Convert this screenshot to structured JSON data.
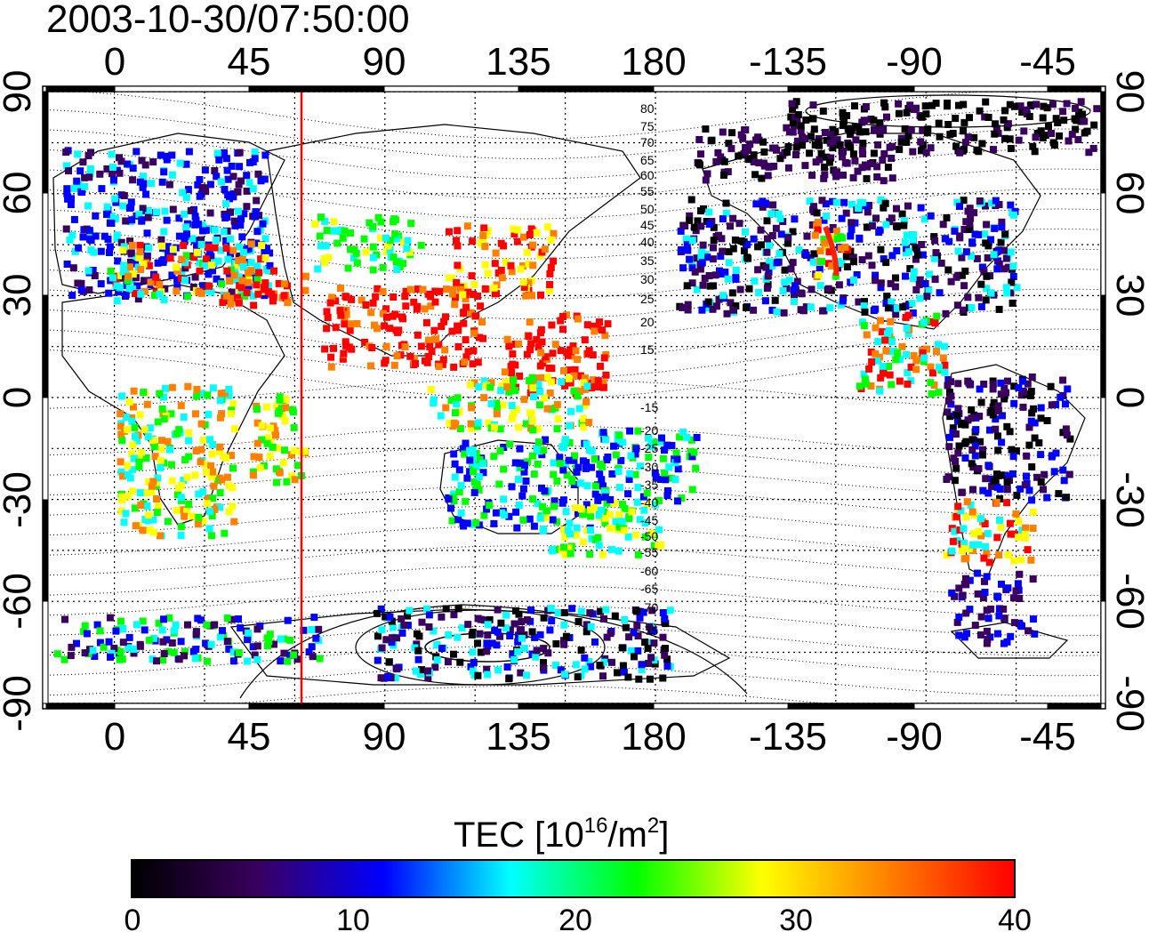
{
  "timestamp": "2003-10-30/07:50:00",
  "map": {
    "top_axis_ticks": [
      "0",
      "45",
      "90",
      "135",
      "180",
      "-135",
      "-90",
      "-45"
    ],
    "bottom_axis_ticks": [
      "0",
      "45",
      "90",
      "135",
      "180",
      "-135",
      "-90",
      "-45"
    ],
    "left_axis_ticks": [
      "90",
      "60",
      "30",
      "0",
      "-30",
      "-60",
      "-90"
    ],
    "right_axis_ticks": [
      "90",
      "60",
      "30",
      "0",
      "-30",
      "-60",
      "-90"
    ],
    "contour_labels": [
      "80",
      "75",
      "70",
      "65",
      "60",
      "55",
      "50",
      "45",
      "40",
      "35",
      "30",
      "25",
      "20",
      "15",
      "-15",
      "-20",
      "-25",
      "-30",
      "-35",
      "-40",
      "-45",
      "-50",
      "-55",
      "-60",
      "-65",
      "-70",
      "-75"
    ],
    "marker_line_color": "#ff0000"
  },
  "colorbar": {
    "title_main": "TEC  [10",
    "title_sup1": "16",
    "title_mid": "/m",
    "title_sup2": "2",
    "title_end": "]",
    "tick_labels": [
      "0",
      "10",
      "20",
      "30",
      "40"
    ],
    "colors": [
      "#000000",
      "#3a0060",
      "#0000ff",
      "#00ffff",
      "#00ff00",
      "#ffff00",
      "#ff8000",
      "#ff0000"
    ]
  }
}
